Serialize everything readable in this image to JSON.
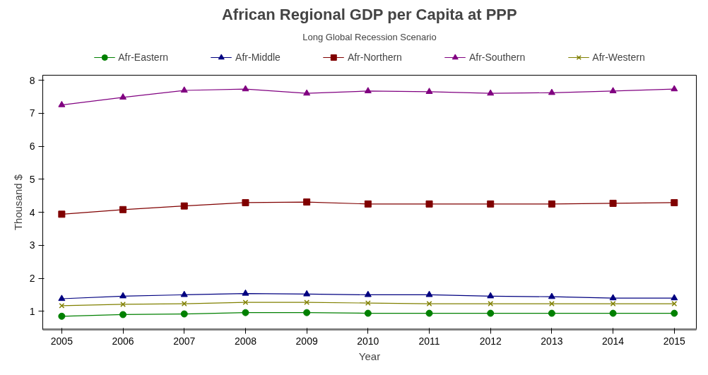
{
  "chart_data": {
    "type": "line",
    "title": "African Regional GDP per Capita at PPP",
    "subtitle": "Long Global Recession Scenario",
    "xlabel": "Year",
    "ylabel": "Thousand $",
    "x": [
      2005,
      2006,
      2007,
      2008,
      2009,
      2010,
      2011,
      2012,
      2013,
      2014,
      2015
    ],
    "xlim": [
      2004.69,
      2015.36
    ],
    "xticks": [
      2005,
      2006,
      2007,
      2008,
      2009,
      2010,
      2011,
      2012,
      2013,
      2014,
      2015
    ],
    "ylim": [
      0.45,
      8.15
    ],
    "yticks": [
      1,
      2,
      3,
      4,
      5,
      6,
      7,
      8
    ],
    "grid": false,
    "legend": "top",
    "series": [
      {
        "name": "Afr-Eastern",
        "color": "#008000",
        "marker": "circle",
        "values": [
          0.85,
          0.9,
          0.92,
          0.96,
          0.96,
          0.94,
          0.94,
          0.94,
          0.94,
          0.94,
          0.94
        ]
      },
      {
        "name": "Afr-Middle",
        "color": "#000080",
        "marker": "triangle",
        "values": [
          1.38,
          1.46,
          1.5,
          1.54,
          1.52,
          1.5,
          1.5,
          1.46,
          1.44,
          1.4,
          1.4
        ]
      },
      {
        "name": "Afr-Northern",
        "color": "#800000",
        "marker": "square",
        "values": [
          3.94,
          4.08,
          4.19,
          4.29,
          4.31,
          4.25,
          4.25,
          4.25,
          4.25,
          4.27,
          4.29
        ]
      },
      {
        "name": "Afr-Southern",
        "color": "#800080",
        "marker": "triangle",
        "values": [
          7.25,
          7.48,
          7.69,
          7.73,
          7.6,
          7.67,
          7.65,
          7.6,
          7.62,
          7.67,
          7.73
        ]
      },
      {
        "name": "Afr-Western",
        "color": "#808000",
        "marker": "x",
        "values": [
          1.17,
          1.21,
          1.23,
          1.27,
          1.27,
          1.25,
          1.23,
          1.23,
          1.23,
          1.23,
          1.23
        ]
      }
    ]
  }
}
